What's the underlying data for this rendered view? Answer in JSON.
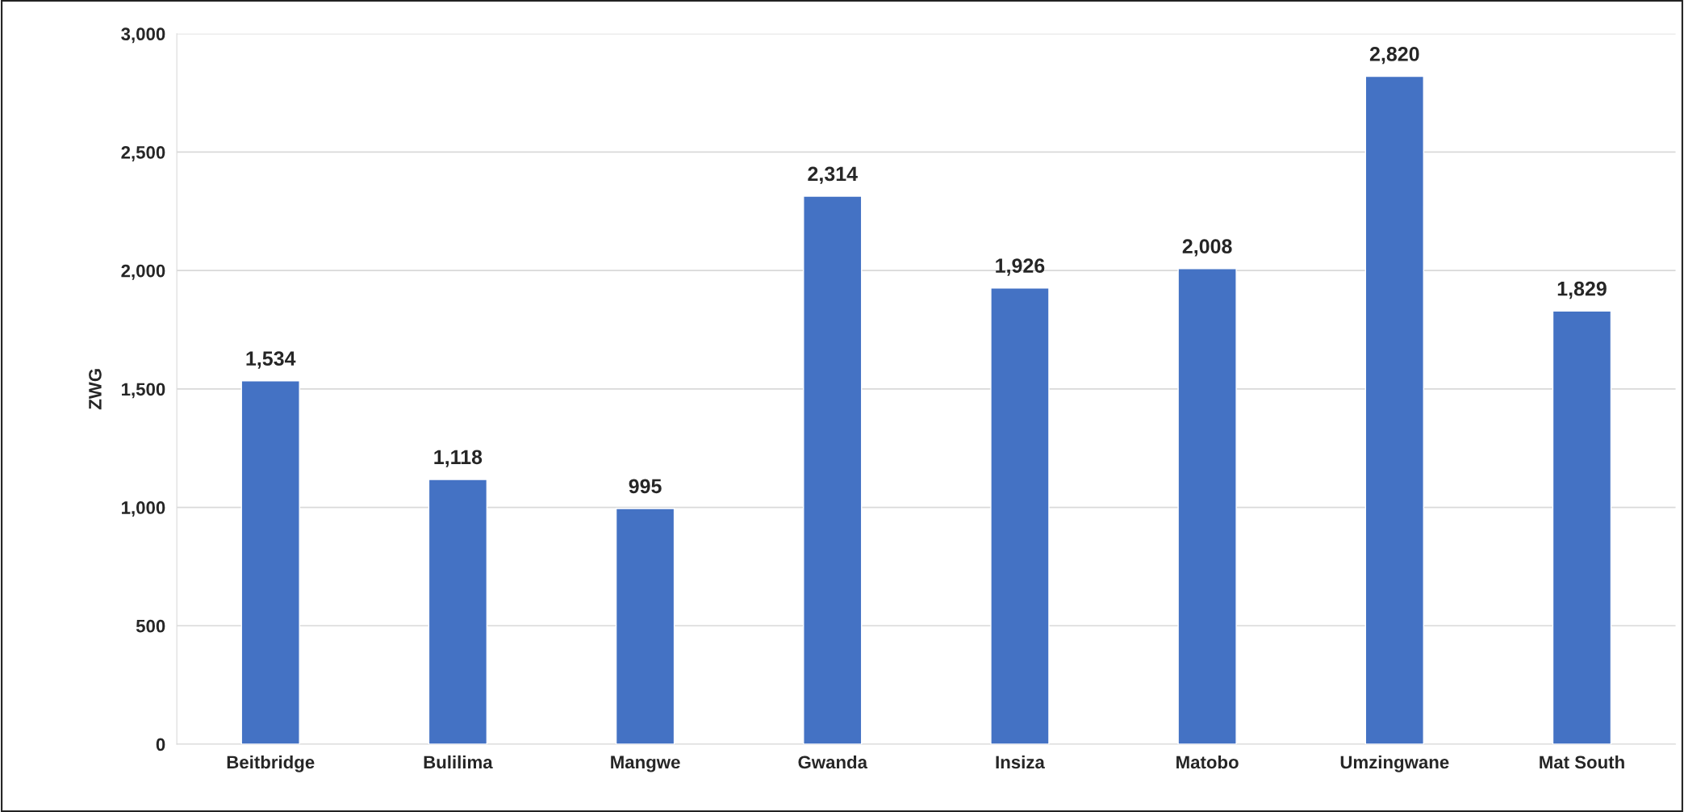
{
  "chart_data": {
    "type": "bar",
    "ylabel": "ZWG",
    "categories": [
      "Beitbridge",
      "Bulilima",
      "Mangwe",
      "Gwanda",
      "Insiza",
      "Matobo",
      "Umzingwane",
      "Mat South"
    ],
    "values": [
      1534,
      1118,
      995,
      2314,
      1926,
      2008,
      2820,
      1829
    ],
    "value_labels": [
      "1,534",
      "1,118",
      "995",
      "2,314",
      "1,926",
      "2,008",
      "2,820",
      "1,829"
    ],
    "color": "#4472c4",
    "ylim": [
      0,
      3000
    ],
    "yticks": [
      0,
      500,
      {
        "value": 1000,
        "label": "1,000"
      },
      {
        "value": 1500,
        "label": "1,500"
      },
      {
        "value": 2000,
        "label": "2,000"
      },
      {
        "value": 2500,
        "label": "2,500"
      },
      {
        "value": 3000,
        "label": "3,000"
      }
    ],
    "grid": "y"
  }
}
